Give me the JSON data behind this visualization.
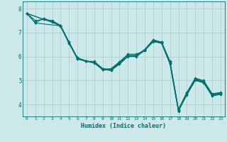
{
  "xlabel": "Humidex (Indice chaleur)",
  "ylabel": "",
  "bg_color": "#cce8e8",
  "line_color": "#007070",
  "grid_color": "#aacccc",
  "xlim": [
    -0.5,
    23.5
  ],
  "ylim": [
    3.5,
    8.3
  ],
  "yticks": [
    4,
    5,
    6,
    7,
    8
  ],
  "xticks": [
    0,
    1,
    2,
    3,
    4,
    5,
    6,
    7,
    8,
    9,
    10,
    11,
    12,
    13,
    14,
    15,
    16,
    17,
    18,
    19,
    20,
    21,
    22,
    23
  ],
  "lines": [
    {
      "x": [
        0,
        1,
        2,
        3,
        4,
        5,
        6,
        7,
        8,
        9,
        10,
        11,
        12,
        13,
        14,
        15,
        16,
        17,
        18,
        19,
        20,
        21,
        22,
        23
      ],
      "y": [
        7.8,
        7.5,
        7.55,
        7.5,
        7.3,
        6.6,
        5.95,
        5.8,
        5.8,
        5.5,
        5.45,
        5.75,
        6.05,
        6.05,
        6.3,
        6.7,
        6.6,
        5.8,
        3.8,
        4.5,
        5.1,
        5.0,
        4.45,
        4.5
      ]
    },
    {
      "x": [
        0,
        1,
        2,
        3,
        4,
        5,
        6,
        7,
        8,
        9,
        10,
        11,
        12,
        13,
        14,
        15,
        16,
        17,
        18,
        19,
        20,
        21,
        22,
        23
      ],
      "y": [
        7.8,
        7.4,
        7.6,
        7.45,
        7.25,
        6.55,
        5.95,
        5.82,
        5.75,
        5.45,
        5.5,
        5.78,
        6.1,
        6.1,
        6.25,
        6.68,
        6.6,
        5.78,
        3.78,
        4.48,
        5.08,
        4.95,
        4.42,
        4.48
      ]
    },
    {
      "x": [
        0,
        2,
        3,
        4,
        5,
        6,
        7,
        8,
        9,
        10,
        11,
        12,
        13,
        14,
        15,
        16,
        17,
        18,
        19,
        20,
        21,
        22,
        23
      ],
      "y": [
        7.8,
        7.55,
        7.48,
        7.27,
        6.6,
        5.93,
        5.82,
        5.75,
        5.48,
        5.47,
        5.72,
        6.03,
        6.03,
        6.28,
        6.65,
        6.58,
        5.75,
        3.75,
        4.45,
        5.05,
        4.95,
        4.4,
        4.47
      ]
    },
    {
      "x": [
        0,
        4,
        5,
        6,
        7,
        8,
        9,
        10,
        11,
        12,
        13,
        14,
        15,
        16,
        17,
        18,
        19,
        20,
        21,
        22,
        23
      ],
      "y": [
        7.8,
        7.3,
        6.55,
        5.9,
        5.82,
        5.75,
        5.47,
        5.43,
        5.7,
        6.02,
        6.02,
        6.27,
        6.65,
        6.57,
        5.72,
        3.73,
        4.43,
        5.03,
        4.93,
        4.37,
        4.45
      ]
    },
    {
      "x": [
        0,
        1,
        4,
        5,
        6,
        7,
        8,
        9,
        10,
        11,
        12,
        13,
        14,
        15,
        16,
        17,
        18,
        19,
        20,
        21,
        22,
        23
      ],
      "y": [
        7.8,
        7.4,
        7.28,
        6.6,
        5.9,
        5.8,
        5.73,
        5.45,
        5.42,
        5.68,
        6.0,
        6.0,
        6.25,
        6.62,
        6.55,
        5.68,
        3.72,
        4.4,
        5.0,
        4.9,
        4.35,
        4.42
      ]
    }
  ]
}
